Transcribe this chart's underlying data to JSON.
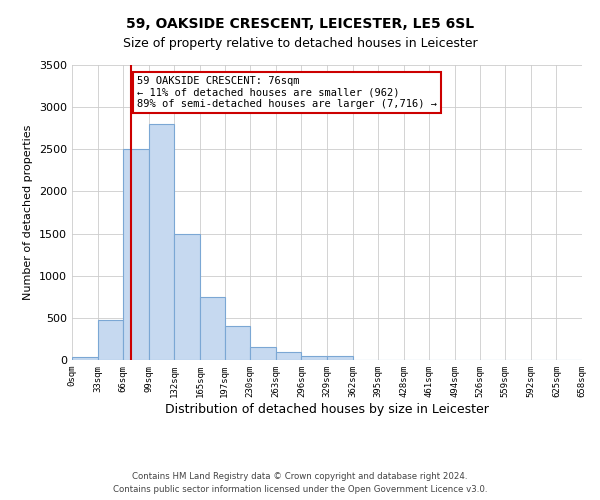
{
  "title": "59, OAKSIDE CRESCENT, LEICESTER, LE5 6SL",
  "subtitle": "Size of property relative to detached houses in Leicester",
  "xlabel": "Distribution of detached houses by size in Leicester",
  "ylabel": "Number of detached properties",
  "property_size": 76,
  "bin_edges": [
    0,
    33,
    66,
    99,
    132,
    165,
    197,
    230,
    263,
    296,
    329,
    362,
    395,
    428,
    461,
    494,
    526,
    559,
    592,
    625,
    658
  ],
  "bar_heights": [
    30,
    480,
    2500,
    2800,
    1500,
    750,
    400,
    150,
    100,
    50,
    50,
    0,
    0,
    0,
    0,
    0,
    0,
    0,
    0,
    0
  ],
  "bar_color": "#c6d9f0",
  "bar_edge_color": "#7ba7d4",
  "vline_color": "#cc0000",
  "vline_x": 76,
  "ylim": [
    0,
    3500
  ],
  "yticks": [
    0,
    500,
    1000,
    1500,
    2000,
    2500,
    3000,
    3500
  ],
  "annotation_line1": "59 OAKSIDE CRESCENT: 76sqm",
  "annotation_line2": "← 11% of detached houses are smaller (962)",
  "annotation_line3": "89% of semi-detached houses are larger (7,716) →",
  "annotation_box_color": "#ffffff",
  "annotation_box_edge": "#cc0000",
  "tick_labels": [
    "0sqm",
    "33sqm",
    "66sqm",
    "99sqm",
    "132sqm",
    "165sqm",
    "197sqm",
    "230sqm",
    "263sqm",
    "296sqm",
    "329sqm",
    "362sqm",
    "395sqm",
    "428sqm",
    "461sqm",
    "494sqm",
    "526sqm",
    "559sqm",
    "592sqm",
    "625sqm",
    "658sqm"
  ],
  "footer_line1": "Contains HM Land Registry data © Crown copyright and database right 2024.",
  "footer_line2": "Contains public sector information licensed under the Open Government Licence v3.0.",
  "grid_color": "#cccccc",
  "background_color": "#ffffff",
  "title_fontsize": 10,
  "subtitle_fontsize": 9,
  "ylabel_fontsize": 8,
  "xlabel_fontsize": 9
}
